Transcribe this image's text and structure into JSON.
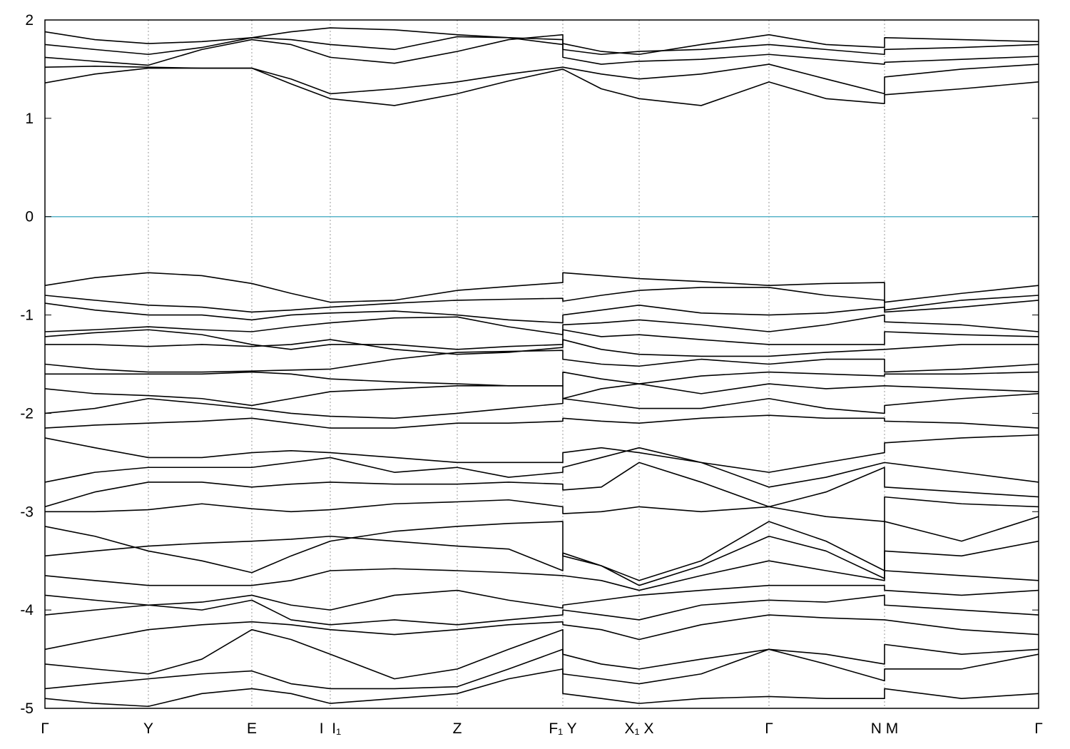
{
  "chart_data": {
    "type": "line",
    "color": "#000000",
    "grid": true,
    "fermi_level": 0,
    "fermi_color": "#5ab4c8",
    "xlim": [
      0,
      13.93
    ],
    "ylim": [
      -5,
      2
    ],
    "yticks": [
      -5,
      -4,
      -3,
      -2,
      -1,
      0,
      1,
      2
    ],
    "xticks": [
      {
        "value": 0,
        "label": "Γ"
      },
      {
        "value": 1.45,
        "label": "Y"
      },
      {
        "value": 2.9,
        "label": "E"
      },
      {
        "value": 4.0,
        "label": "I  I₁"
      },
      {
        "value": 5.78,
        "label": "Z"
      },
      {
        "value": 7.26,
        "label": "F₁ Y"
      },
      {
        "value": 8.33,
        "label": "X₁ X"
      },
      {
        "value": 10.15,
        "label": "Γ"
      },
      {
        "value": 11.77,
        "label": "N M"
      },
      {
        "value": 13.93,
        "label": "Γ"
      }
    ],
    "x": [
      0,
      0.7,
      1.45,
      2.2,
      2.9,
      3.45,
      4.0,
      4.9,
      5.78,
      6.5,
      7.26,
      7.26,
      7.8,
      8.33,
      9.2,
      10.15,
      10.95,
      11.77,
      11.77,
      12.85,
      13.93
    ],
    "series": [
      {
        "values": [
          1.36,
          1.45,
          1.51,
          1.51,
          1.51,
          1.35,
          1.2,
          1.13,
          1.25,
          1.38,
          1.5,
          1.5,
          1.3,
          1.2,
          1.13,
          1.37,
          1.2,
          1.15,
          1.24,
          1.3,
          1.37
        ]
      },
      {
        "values": [
          1.52,
          1.53,
          1.52,
          1.51,
          1.51,
          1.4,
          1.25,
          1.3,
          1.37,
          1.45,
          1.52,
          1.52,
          1.45,
          1.4,
          1.45,
          1.55,
          1.4,
          1.25,
          1.42,
          1.5,
          1.55
        ]
      },
      {
        "values": [
          1.62,
          1.58,
          1.54,
          1.7,
          1.8,
          1.75,
          1.62,
          1.56,
          1.68,
          1.8,
          1.85,
          1.62,
          1.55,
          1.58,
          1.6,
          1.65,
          1.6,
          1.55,
          1.57,
          1.6,
          1.63
        ]
      },
      {
        "values": [
          1.75,
          1.7,
          1.65,
          1.72,
          1.82,
          1.8,
          1.75,
          1.7,
          1.83,
          1.82,
          1.8,
          1.7,
          1.65,
          1.68,
          1.7,
          1.75,
          1.7,
          1.65,
          1.7,
          1.72,
          1.75
        ]
      },
      {
        "values": [
          1.88,
          1.8,
          1.76,
          1.78,
          1.82,
          1.88,
          1.92,
          1.9,
          1.85,
          1.82,
          1.75,
          1.76,
          1.68,
          1.65,
          1.75,
          1.85,
          1.75,
          1.72,
          1.82,
          1.8,
          1.78
        ]
      },
      {
        "values": [
          -0.7,
          -0.62,
          -0.57,
          -0.6,
          -0.68,
          -0.78,
          -0.87,
          -0.85,
          -0.75,
          -0.71,
          -0.67,
          -0.57,
          -0.6,
          -0.63,
          -0.66,
          -0.7,
          -0.68,
          -0.67,
          -0.87,
          -0.78,
          -0.7
        ]
      },
      {
        "values": [
          -0.8,
          -0.85,
          -0.9,
          -0.92,
          -0.97,
          -0.95,
          -0.92,
          -0.88,
          -0.85,
          -0.84,
          -0.83,
          -0.86,
          -0.8,
          -0.75,
          -0.72,
          -0.72,
          -0.8,
          -0.85,
          -0.95,
          -0.85,
          -0.8
        ]
      },
      {
        "values": [
          -0.88,
          -0.95,
          -1.0,
          -1.0,
          -1.05,
          -1.0,
          -0.98,
          -0.96,
          -1.0,
          -1.05,
          -1.08,
          -1.0,
          -0.95,
          -0.9,
          -0.98,
          -1.0,
          -0.98,
          -0.92,
          -0.97,
          -0.92,
          -0.85
        ]
      },
      {
        "values": [
          -1.17,
          -1.15,
          -1.12,
          -1.15,
          -1.17,
          -1.12,
          -1.08,
          -1.03,
          -1.02,
          -1.12,
          -1.2,
          -1.1,
          -1.08,
          -1.05,
          -1.1,
          -1.17,
          -1.1,
          -1.0,
          -1.07,
          -1.1,
          -1.17
        ]
      },
      {
        "values": [
          -1.22,
          -1.18,
          -1.15,
          -1.2,
          -1.3,
          -1.35,
          -1.3,
          -1.3,
          -1.35,
          -1.32,
          -1.3,
          -1.15,
          -1.22,
          -1.2,
          -1.25,
          -1.3,
          -1.3,
          -1.3,
          -1.17,
          -1.2,
          -1.22
        ]
      },
      {
        "values": [
          -1.3,
          -1.3,
          -1.32,
          -1.3,
          -1.32,
          -1.3,
          -1.25,
          -1.35,
          -1.4,
          -1.38,
          -1.33,
          -1.25,
          -1.35,
          -1.4,
          -1.42,
          -1.42,
          -1.38,
          -1.35,
          -1.35,
          -1.3,
          -1.3
        ]
      },
      {
        "values": [
          -1.5,
          -1.55,
          -1.58,
          -1.58,
          -1.57,
          -1.56,
          -1.55,
          -1.45,
          -1.38,
          -1.37,
          -1.36,
          -1.45,
          -1.5,
          -1.52,
          -1.45,
          -1.5,
          -1.45,
          -1.45,
          -1.58,
          -1.55,
          -1.5
        ]
      },
      {
        "values": [
          -1.6,
          -1.6,
          -1.6,
          -1.6,
          -1.58,
          -1.6,
          -1.65,
          -1.68,
          -1.7,
          -1.72,
          -1.72,
          -1.58,
          -1.65,
          -1.7,
          -1.62,
          -1.58,
          -1.6,
          -1.62,
          -1.6,
          -1.6,
          -1.58
        ]
      },
      {
        "values": [
          -1.75,
          -1.8,
          -1.82,
          -1.85,
          -1.92,
          -1.85,
          -1.78,
          -1.75,
          -1.72,
          -1.72,
          -1.72,
          -1.85,
          -1.75,
          -1.7,
          -1.8,
          -1.7,
          -1.75,
          -1.72,
          -1.72,
          -1.75,
          -1.78
        ]
      },
      {
        "values": [
          -2.0,
          -1.95,
          -1.85,
          -1.9,
          -1.95,
          -2.0,
          -2.03,
          -2.05,
          -2.0,
          -1.95,
          -1.9,
          -1.85,
          -1.9,
          -1.95,
          -1.95,
          -1.85,
          -1.95,
          -2.0,
          -1.92,
          -1.85,
          -1.8
        ]
      },
      {
        "values": [
          -2.15,
          -2.12,
          -2.1,
          -2.08,
          -2.05,
          -2.1,
          -2.15,
          -2.15,
          -2.1,
          -2.1,
          -2.08,
          -2.05,
          -2.08,
          -2.1,
          -2.05,
          -2.02,
          -2.05,
          -2.05,
          -2.08,
          -2.1,
          -2.15
        ]
      },
      {
        "values": [
          -2.25,
          -2.35,
          -2.45,
          -2.45,
          -2.4,
          -2.38,
          -2.4,
          -2.45,
          -2.5,
          -2.5,
          -2.5,
          -2.4,
          -2.35,
          -2.4,
          -2.5,
          -2.6,
          -2.5,
          -2.4,
          -2.3,
          -2.25,
          -2.22
        ]
      },
      {
        "values": [
          -2.7,
          -2.6,
          -2.55,
          -2.55,
          -2.55,
          -2.5,
          -2.45,
          -2.6,
          -2.55,
          -2.65,
          -2.6,
          -2.55,
          -2.45,
          -2.35,
          -2.5,
          -2.75,
          -2.65,
          -2.5,
          -2.5,
          -2.6,
          -2.7
        ]
      },
      {
        "values": [
          -2.95,
          -2.8,
          -2.7,
          -2.7,
          -2.75,
          -2.72,
          -2.7,
          -2.72,
          -2.72,
          -2.7,
          -2.72,
          -2.78,
          -2.75,
          -2.5,
          -2.7,
          -2.95,
          -2.8,
          -2.55,
          -2.75,
          -2.8,
          -2.85
        ]
      },
      {
        "values": [
          -3.0,
          -3.0,
          -2.98,
          -2.92,
          -2.97,
          -3.0,
          -2.98,
          -2.92,
          -2.9,
          -2.88,
          -2.95,
          -3.02,
          -3.0,
          -2.95,
          -3.0,
          -2.95,
          -3.05,
          -3.1,
          -2.85,
          -2.92,
          -2.95
        ]
      },
      {
        "values": [
          -3.15,
          -3.25,
          -3.4,
          -3.5,
          -3.62,
          -3.45,
          -3.3,
          -3.2,
          -3.15,
          -3.12,
          -3.1,
          -3.45,
          -3.55,
          -3.7,
          -3.5,
          -3.1,
          -3.3,
          -3.6,
          -3.1,
          -3.3,
          -3.05
        ]
      },
      {
        "values": [
          -3.45,
          -3.4,
          -3.35,
          -3.32,
          -3.3,
          -3.28,
          -3.25,
          -3.3,
          -3.35,
          -3.38,
          -3.6,
          -3.42,
          -3.55,
          -3.75,
          -3.55,
          -3.25,
          -3.4,
          -3.68,
          -3.4,
          -3.45,
          -3.3
        ]
      },
      {
        "values": [
          -3.65,
          -3.7,
          -3.75,
          -3.75,
          -3.75,
          -3.7,
          -3.6,
          -3.58,
          -3.6,
          -3.62,
          -3.65,
          -3.65,
          -3.7,
          -3.8,
          -3.65,
          -3.5,
          -3.6,
          -3.7,
          -3.6,
          -3.65,
          -3.7
        ]
      },
      {
        "values": [
          -3.85,
          -3.9,
          -3.95,
          -3.92,
          -3.85,
          -3.95,
          -4.0,
          -3.85,
          -3.8,
          -3.9,
          -3.98,
          -3.95,
          -3.9,
          -3.85,
          -3.8,
          -3.75,
          -3.75,
          -3.75,
          -3.8,
          -3.85,
          -3.8
        ]
      },
      {
        "values": [
          -4.05,
          -4.0,
          -3.95,
          -4.0,
          -3.9,
          -4.1,
          -4.15,
          -4.1,
          -4.15,
          -4.1,
          -4.05,
          -4.0,
          -4.05,
          -4.1,
          -3.95,
          -3.9,
          -3.92,
          -3.85,
          -3.95,
          -4.0,
          -4.05
        ]
      },
      {
        "values": [
          -4.4,
          -4.3,
          -4.2,
          -4.15,
          -4.12,
          -4.15,
          -4.2,
          -4.25,
          -4.2,
          -4.15,
          -4.12,
          -4.15,
          -4.2,
          -4.3,
          -4.15,
          -4.05,
          -4.08,
          -4.1,
          -4.1,
          -4.2,
          -4.25
        ]
      },
      {
        "values": [
          -4.55,
          -4.6,
          -4.65,
          -4.5,
          -4.2,
          -4.3,
          -4.45,
          -4.7,
          -4.6,
          -4.4,
          -4.2,
          -4.45,
          -4.55,
          -4.6,
          -4.5,
          -4.4,
          -4.45,
          -4.55,
          -4.35,
          -4.45,
          -4.4
        ]
      },
      {
        "values": [
          -4.8,
          -4.75,
          -4.7,
          -4.65,
          -4.62,
          -4.75,
          -4.8,
          -4.8,
          -4.78,
          -4.6,
          -4.4,
          -4.65,
          -4.7,
          -4.75,
          -4.65,
          -4.4,
          -4.55,
          -4.72,
          -4.6,
          -4.6,
          -4.45
        ]
      },
      {
        "values": [
          -4.9,
          -4.95,
          -4.98,
          -4.85,
          -4.8,
          -4.85,
          -4.95,
          -4.9,
          -4.85,
          -4.7,
          -4.6,
          -4.85,
          -4.9,
          -4.95,
          -4.9,
          -4.88,
          -4.9,
          -4.9,
          -4.8,
          -4.9,
          -4.85
        ]
      }
    ]
  }
}
